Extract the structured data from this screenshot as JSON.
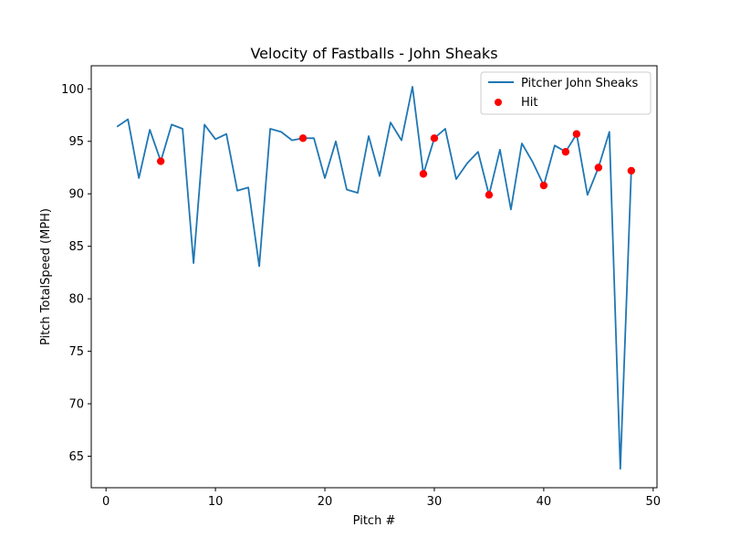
{
  "chart_data": {
    "type": "line",
    "title": "Velocity of Fastballs - John Sheaks",
    "xlabel": "Pitch #",
    "ylabel": "Pitch TotalSpeed (MPH)",
    "xlim": [
      -1.35,
      50.35
    ],
    "ylim": [
      62.0,
      102.2
    ],
    "xticks": [
      0,
      10,
      20,
      30,
      40,
      50
    ],
    "yticks": [
      65,
      70,
      75,
      80,
      85,
      90,
      95,
      100
    ],
    "grid": false,
    "legend_position": "top-right",
    "series": [
      {
        "name": "Pitcher John Sheaks",
        "kind": "line",
        "color": "#1f77b4",
        "x": [
          1,
          2,
          3,
          4,
          5,
          6,
          7,
          8,
          9,
          10,
          11,
          12,
          13,
          14,
          15,
          16,
          17,
          18,
          19,
          20,
          21,
          22,
          23,
          24,
          25,
          26,
          27,
          28,
          29,
          30,
          31,
          32,
          33,
          34,
          35,
          36,
          37,
          38,
          39,
          40,
          41,
          42,
          43,
          44,
          45,
          46,
          47,
          48
        ],
        "y": [
          96.4,
          97.1,
          91.5,
          96.1,
          93.1,
          96.6,
          96.2,
          83.4,
          96.6,
          95.2,
          95.7,
          90.3,
          90.6,
          83.1,
          96.2,
          95.9,
          95.1,
          95.3,
          95.3,
          91.5,
          95.0,
          90.4,
          90.1,
          95.5,
          91.7,
          96.8,
          95.1,
          100.2,
          91.9,
          95.3,
          96.2,
          91.4,
          92.9,
          94.0,
          89.9,
          94.2,
          88.5,
          94.8,
          93.0,
          90.8,
          94.6,
          94.0,
          95.7,
          89.9,
          92.5,
          95.9,
          63.8,
          92.2
        ]
      },
      {
        "name": "Hit",
        "kind": "scatter",
        "color": "#ff0000",
        "x": [
          5,
          18,
          29,
          30,
          35,
          40,
          42,
          43,
          45,
          48
        ],
        "y": [
          93.1,
          95.3,
          91.9,
          95.3,
          89.9,
          90.8,
          94.0,
          95.7,
          92.5,
          92.2
        ]
      }
    ]
  }
}
